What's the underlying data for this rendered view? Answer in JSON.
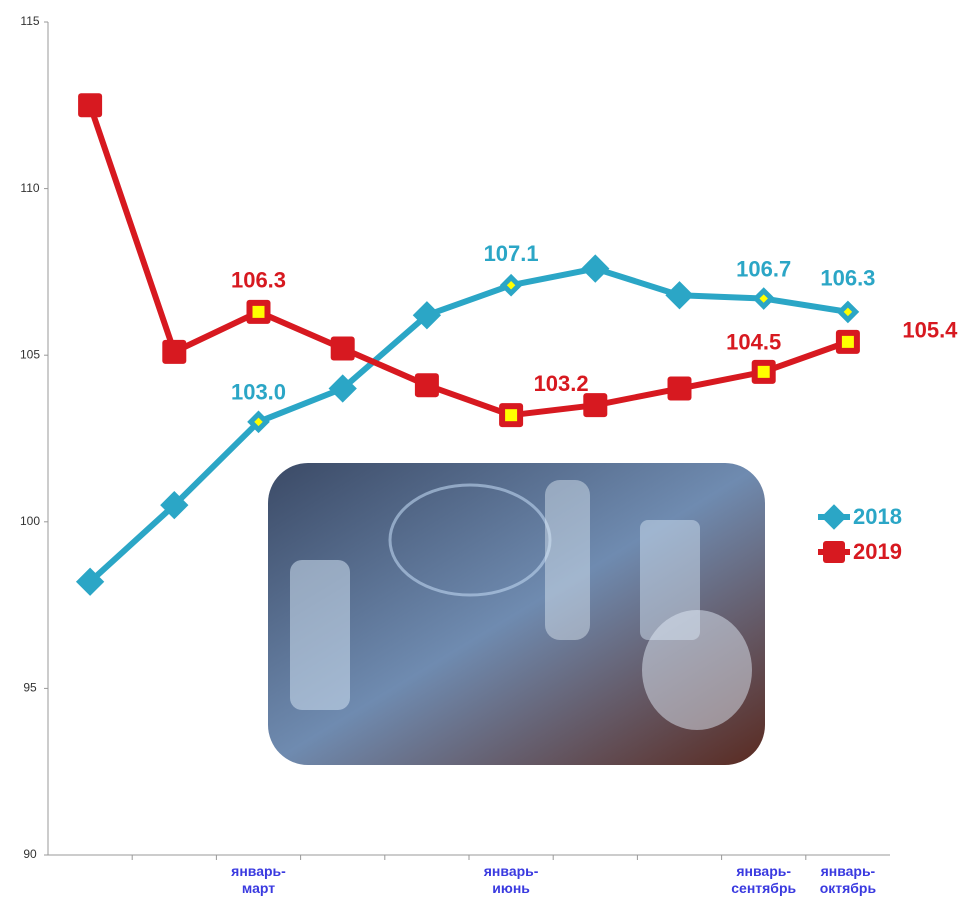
{
  "chart_data": {
    "type": "line",
    "categories": [
      null,
      null,
      "январь-март",
      null,
      null,
      "январь-июнь",
      null,
      null,
      "январь-сентябрь",
      "январь-октябрь"
    ],
    "series": [
      {
        "name": "2018",
        "color": "#2ba6c6",
        "marker": "diamond",
        "values": [
          98.2,
          100.5,
          103.0,
          104.0,
          106.2,
          107.1,
          107.6,
          106.8,
          106.7,
          106.3
        ],
        "value_labels": [
          null,
          null,
          "103.0",
          null,
          null,
          "107.1",
          null,
          null,
          "106.7",
          "106.3"
        ]
      },
      {
        "name": "2019",
        "color": "#d71920",
        "marker": "square",
        "values": [
          112.5,
          105.1,
          106.3,
          105.2,
          104.1,
          103.2,
          103.5,
          104.0,
          104.5,
          105.4
        ],
        "value_labels": [
          null,
          null,
          "106.3",
          null,
          null,
          "103.2",
          null,
          null,
          "104.5",
          "105.4"
        ]
      }
    ],
    "ylim": [
      90,
      115
    ],
    "yticks": [
      90,
      95,
      100,
      105,
      110,
      115
    ],
    "grid": false
  }
}
